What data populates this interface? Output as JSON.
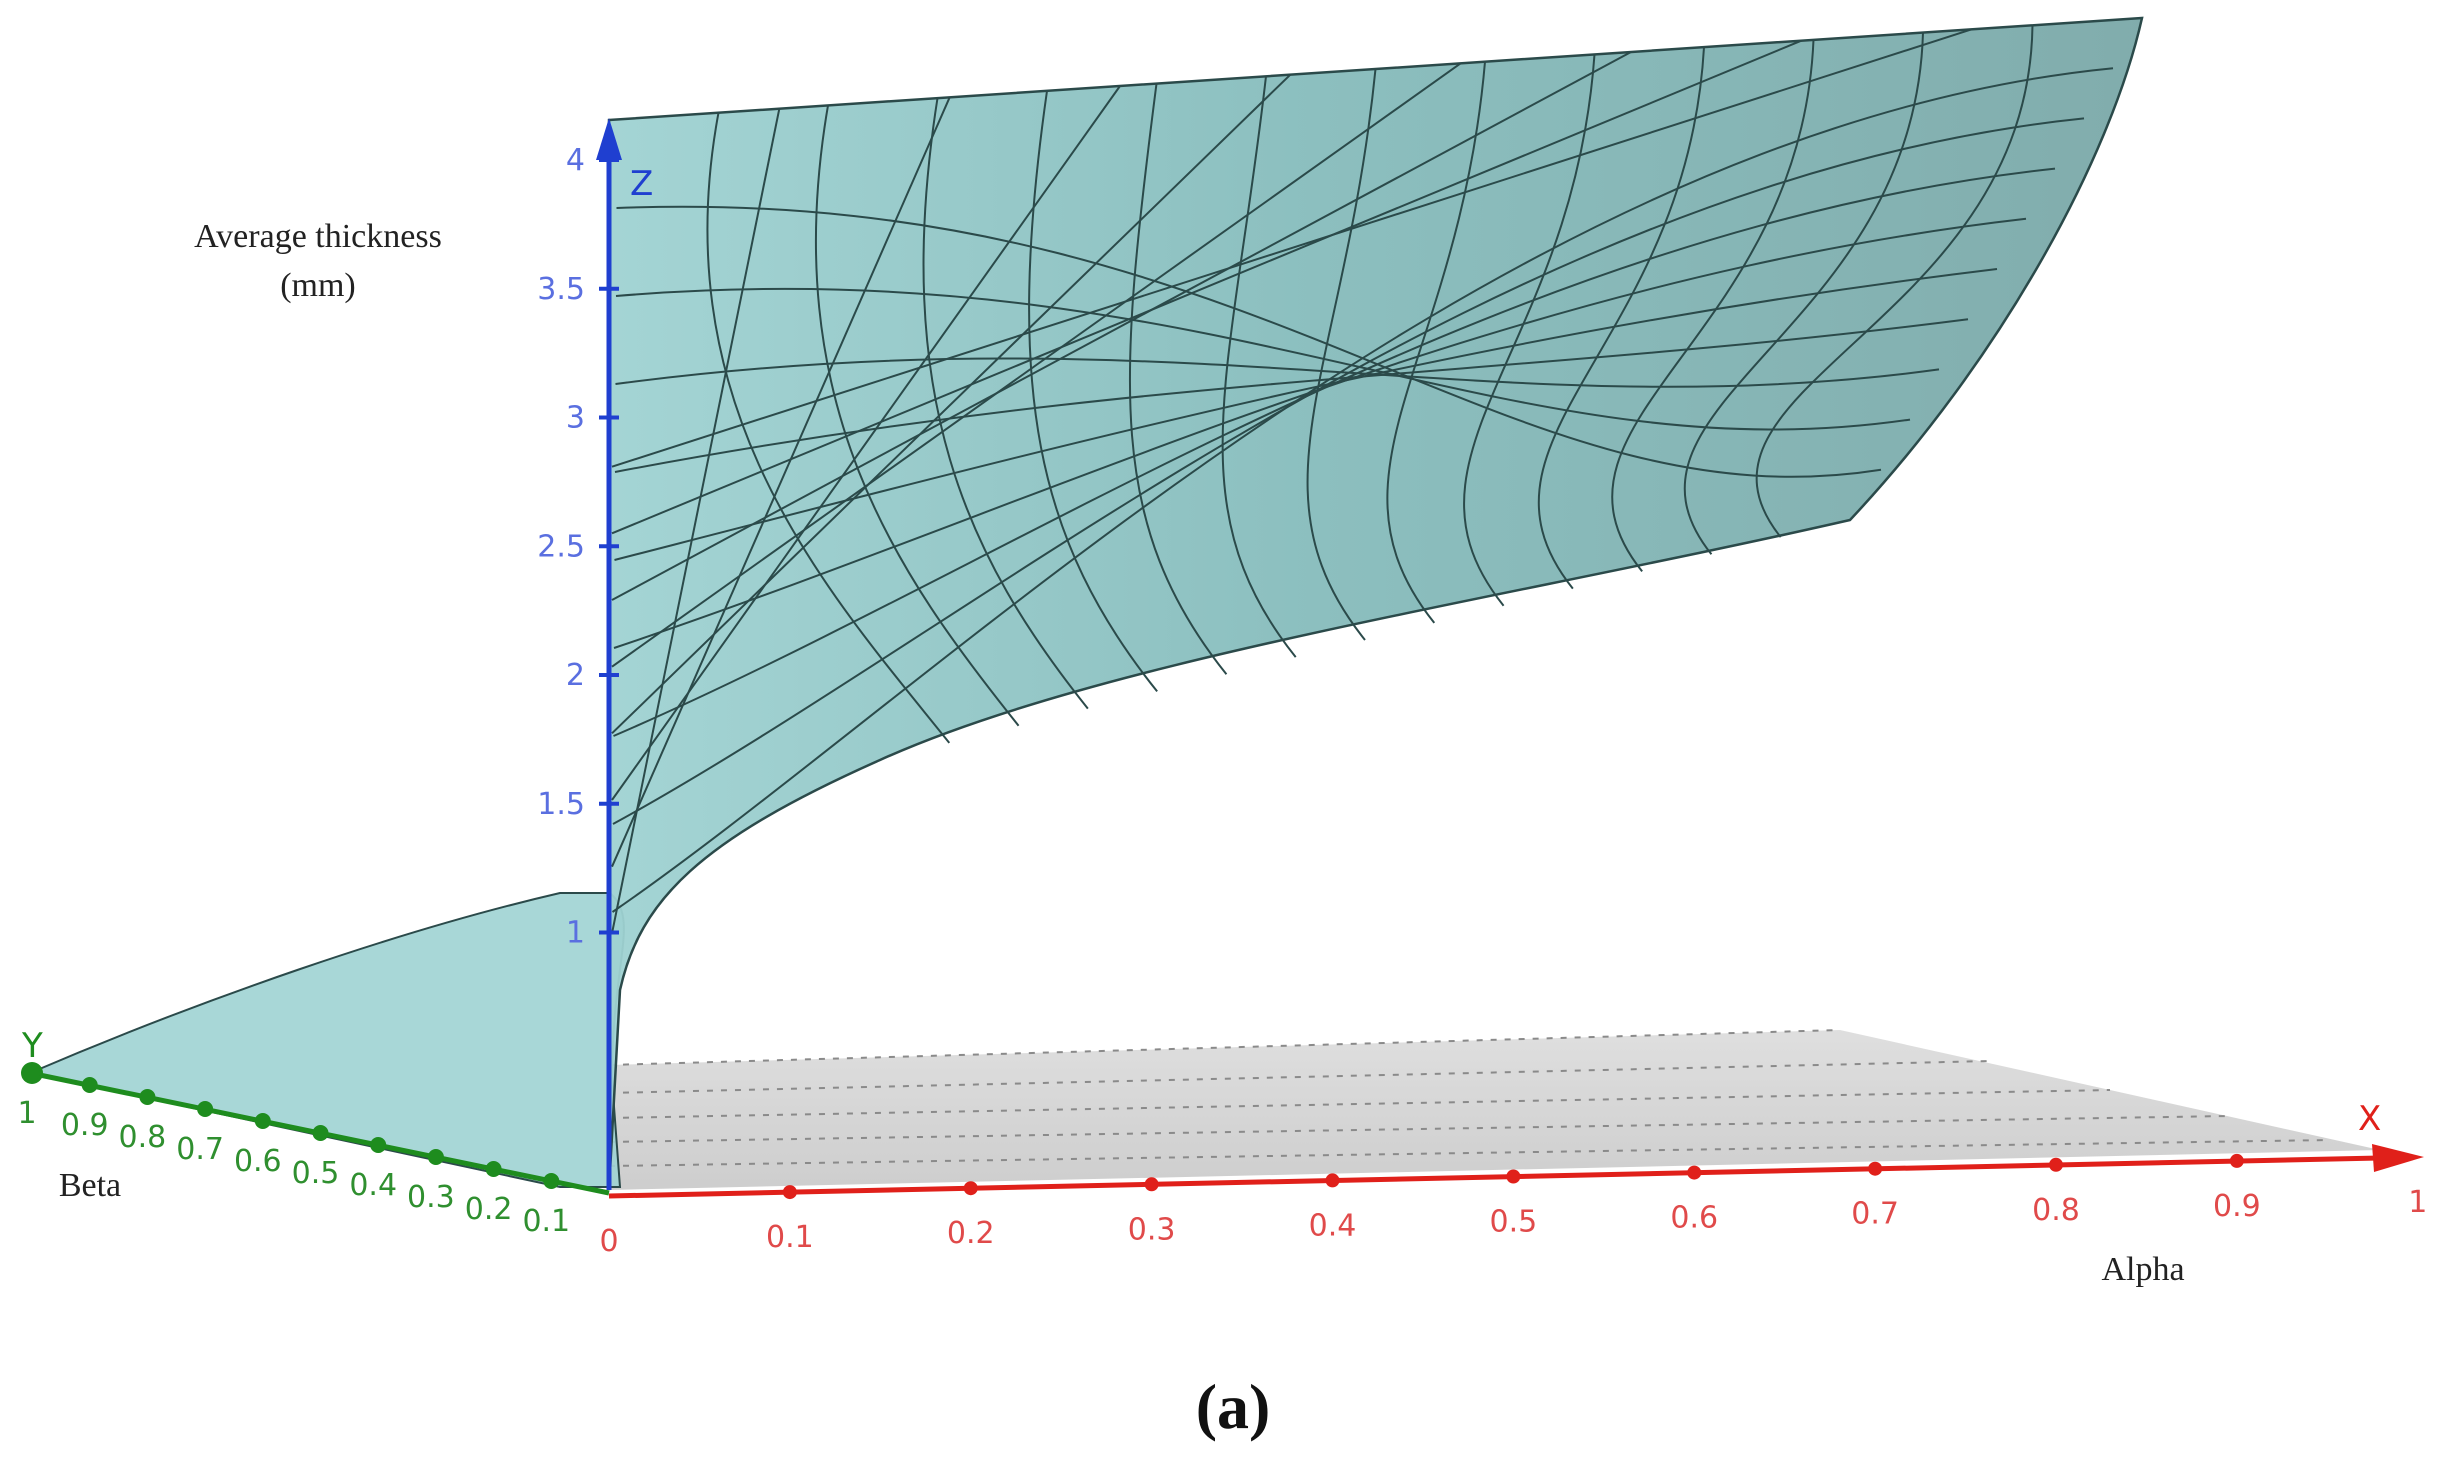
{
  "chart_data": {
    "type": "surface3d",
    "caption": "(a)",
    "zlabel_line1": "Average thickness",
    "zlabel_line2": "(mm)",
    "xlabel": "Alpha",
    "ylabel": "Beta",
    "axis_x_name": "X",
    "axis_y_name": "Y",
    "axis_z_name": "Z",
    "xlim": [
      0,
      1
    ],
    "ylim": [
      0,
      1
    ],
    "zlim": [
      0,
      4
    ],
    "x_ticks": [
      "0",
      "0.1",
      "0.2",
      "0.3",
      "0.4",
      "0.5",
      "0.6",
      "0.7",
      "0.8",
      "0.9",
      "1"
    ],
    "y_ticks": [
      "0.1",
      "0.2",
      "0.3",
      "0.4",
      "0.5",
      "0.6",
      "0.7",
      "0.8",
      "0.9",
      "1"
    ],
    "z_ticks": [
      "1",
      "1.5",
      "2",
      "2.5",
      "3",
      "3.5",
      "4"
    ],
    "grid": true,
    "colors": {
      "surface": "#8cc5c5",
      "surface_edge": "#2b4a4a",
      "x_axis": "#e0201a",
      "y_axis": "#1e8c1e",
      "z_axis": "#1f3fd0",
      "z_tick_text": "#5a6fe0",
      "x_tick_text": "#e04a4a",
      "y_tick_text": "#2f8f2f",
      "base_plane": "#c8c8c8"
    }
  }
}
